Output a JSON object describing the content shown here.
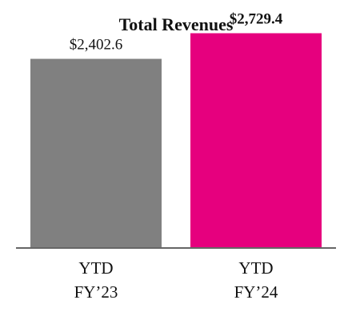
{
  "chart_data": {
    "type": "bar",
    "title": "Total Revenues",
    "categories": [
      [
        "YTD",
        "FY’23"
      ],
      [
        "YTD",
        "FY’24"
      ]
    ],
    "values": [
      2402.6,
      2729.4
    ],
    "data_labels": [
      "$2,402.6",
      "$2,729.4"
    ],
    "data_label_bold": [
      false,
      true
    ],
    "colors": [
      "#808080",
      "#E6007E"
    ],
    "axis_line_color": "#666666",
    "xlabel": "",
    "ylabel": "",
    "ylim": [
      0,
      3000
    ],
    "grid": false,
    "legend": "none"
  }
}
